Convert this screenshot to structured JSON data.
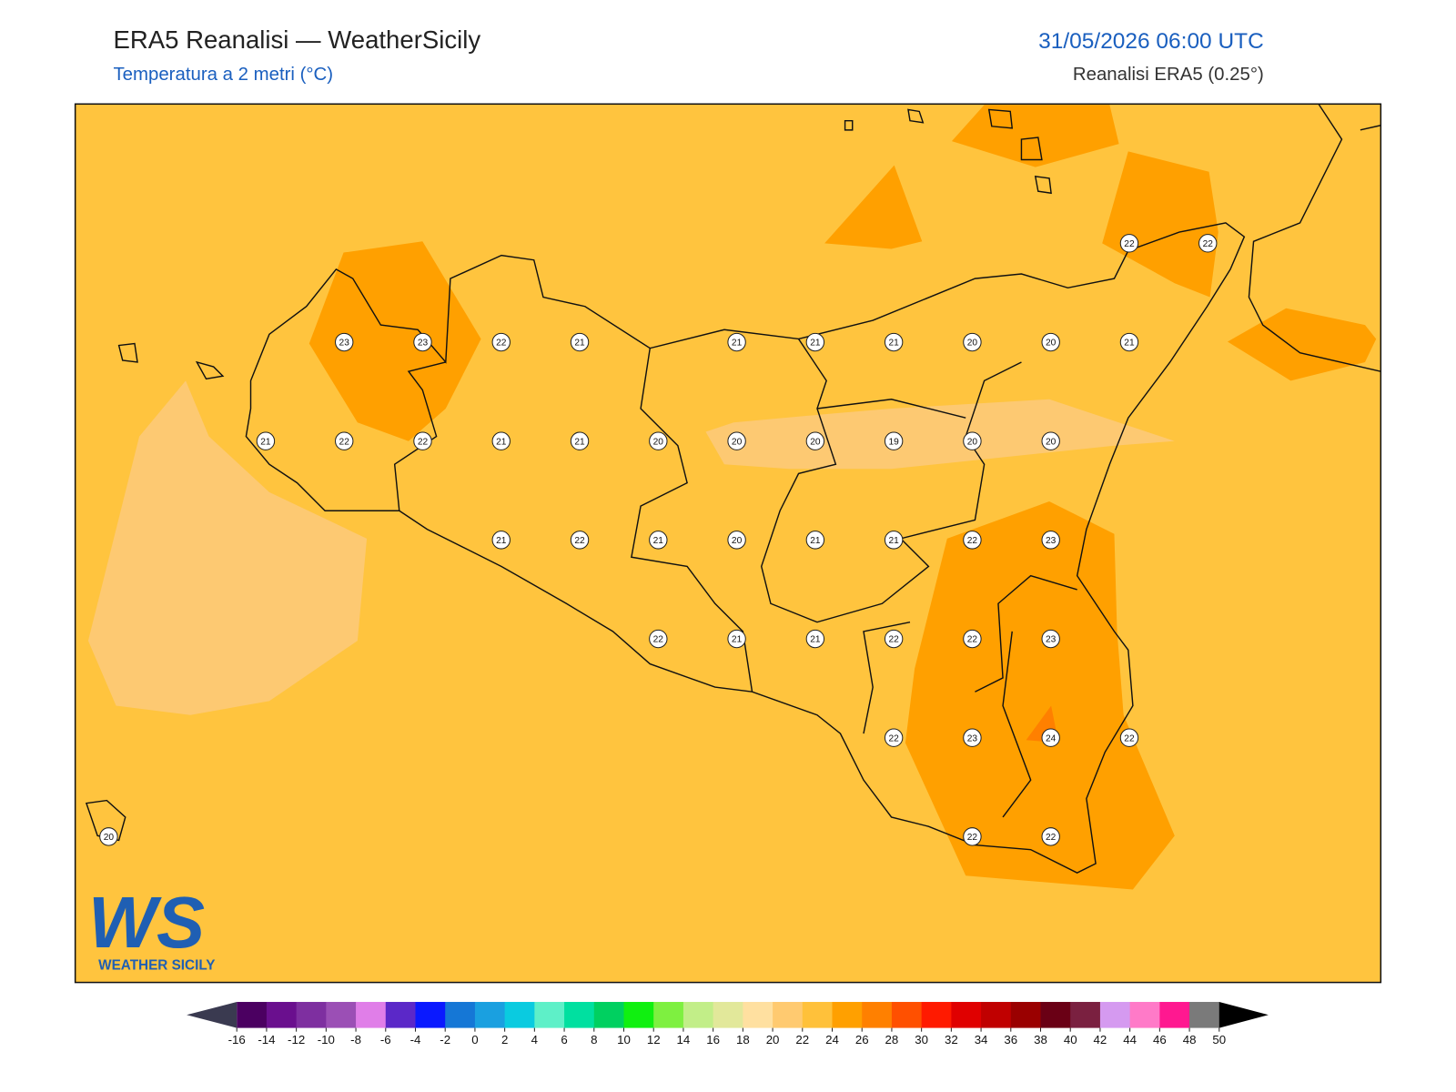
{
  "header": {
    "title": "ERA5 Reanalisi — WeatherSicily",
    "subtitle": "Temperatura a 2 metri (°C)",
    "datetime": "31/05/2026 06:00 UTC",
    "source": "Reanalisi ERA5 (0.25°)"
  },
  "map": {
    "background": "#ffc43e",
    "grid": [
      [
        null,
        null,
        null,
        null,
        null,
        null,
        null,
        null,
        null,
        null,
        null,
        null,
        null,
        22,
        22
      ],
      [
        null,
        null,
        null,
        23,
        23,
        22,
        21,
        null,
        21,
        21,
        21,
        20,
        20,
        21,
        null
      ],
      [
        null,
        null,
        21,
        22,
        22,
        21,
        21,
        20,
        20,
        20,
        19,
        20,
        20,
        null,
        null
      ],
      [
        null,
        null,
        null,
        null,
        null,
        21,
        22,
        21,
        20,
        21,
        21,
        22,
        23,
        null,
        null
      ],
      [
        null,
        null,
        null,
        null,
        null,
        null,
        null,
        22,
        21,
        21,
        22,
        22,
        23,
        null,
        null
      ],
      [
        null,
        null,
        null,
        null,
        null,
        null,
        null,
        null,
        null,
        null,
        22,
        23,
        24,
        22,
        null
      ],
      [
        20,
        null,
        null,
        null,
        null,
        null,
        null,
        null,
        null,
        null,
        null,
        22,
        22,
        null,
        null
      ]
    ]
  },
  "colorbar": {
    "ticks": [
      -16,
      -14,
      -12,
      -10,
      -8,
      -6,
      -4,
      -2,
      0,
      2,
      4,
      6,
      8,
      10,
      12,
      14,
      16,
      18,
      20,
      22,
      24,
      26,
      28,
      30,
      32,
      34,
      36,
      38,
      40,
      42,
      44,
      46,
      48,
      50
    ],
    "colors": [
      "#4b0061",
      "#6a0f8e",
      "#7e2fa0",
      "#9b4fb5",
      "#e07ee8",
      "#5b28c8",
      "#0a19ff",
      "#1577d6",
      "#1aa0e0",
      "#0acbe0",
      "#5ef0c8",
      "#00e0a0",
      "#00d060",
      "#10f010",
      "#7ef040",
      "#c2ee88",
      "#e2e89a",
      "#ffe0a0",
      "#ffca70",
      "#ffc13a",
      "#ffa000",
      "#ff8000",
      "#ff5000",
      "#ff1a00",
      "#e00000",
      "#c00000",
      "#9a0000",
      "#6a0015",
      "#7a2040",
      "#d59af0",
      "#ff7ac8",
      "#ff1890",
      "#7a7a7a",
      "#333333"
    ],
    "under": "#3a3a50",
    "over": "#000000"
  },
  "logo": {
    "text": "WS",
    "caption": "WEATHER SICILY"
  }
}
